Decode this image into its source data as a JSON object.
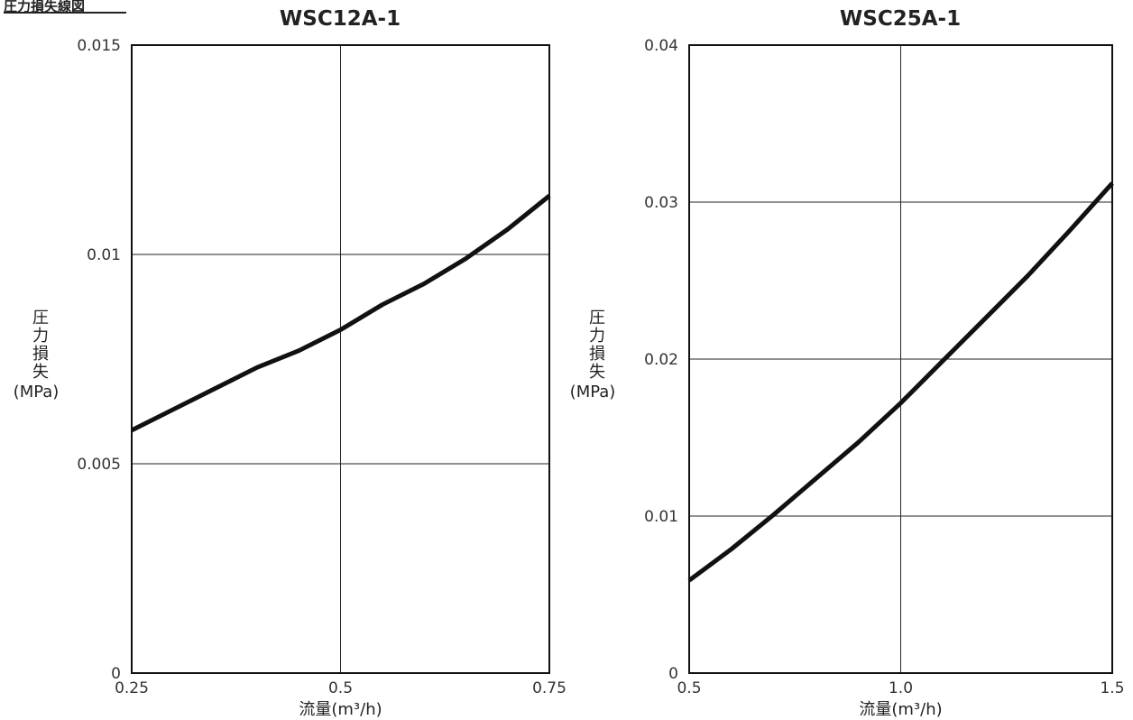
{
  "page_title": "圧力損失線図",
  "chart_data": [
    {
      "type": "line",
      "title": "WSC12A-1",
      "xlabel": "流量(m³/h)",
      "ylabel_chars": [
        "圧",
        "力",
        "損",
        "失"
      ],
      "ylabel_unit": "(MPa)",
      "xlim": [
        0.25,
        0.75
      ],
      "ylim": [
        0,
        0.015
      ],
      "x_ticks": [
        0.25,
        0.5,
        0.75
      ],
      "x_tick_labels": [
        "0.25",
        "0.5",
        "0.75"
      ],
      "y_ticks": [
        0,
        0.005,
        0.01,
        0.015
      ],
      "y_tick_labels": [
        "0",
        "0.005",
        "0.01",
        "0.015"
      ],
      "grid": true,
      "series": [
        {
          "x": [
            0.25,
            0.3,
            0.35,
            0.4,
            0.45,
            0.5,
            0.55,
            0.6,
            0.65,
            0.7,
            0.75
          ],
          "y": [
            0.0058,
            0.0063,
            0.0068,
            0.0073,
            0.0077,
            0.0082,
            0.0088,
            0.0093,
            0.0099,
            0.0106,
            0.0114
          ]
        }
      ]
    },
    {
      "type": "line",
      "title": "WSC25A-1",
      "xlabel": "流量(m³/h)",
      "ylabel_chars": [
        "圧",
        "力",
        "損",
        "失"
      ],
      "ylabel_unit": "(MPa)",
      "xlim": [
        0.5,
        1.5
      ],
      "ylim": [
        0,
        0.04
      ],
      "x_ticks": [
        0.5,
        1.0,
        1.5
      ],
      "x_tick_labels": [
        "0.5",
        "1.0",
        "1.5"
      ],
      "y_ticks": [
        0,
        0.01,
        0.02,
        0.03,
        0.04
      ],
      "y_tick_labels": [
        "0",
        "0.01",
        "0.02",
        "0.03",
        "0.04"
      ],
      "grid": true,
      "series": [
        {
          "x": [
            0.5,
            0.6,
            0.7,
            0.8,
            0.9,
            1.0,
            1.1,
            1.2,
            1.3,
            1.4,
            1.5
          ],
          "y": [
            0.0059,
            0.0079,
            0.0101,
            0.0124,
            0.0147,
            0.0172,
            0.0199,
            0.0226,
            0.0253,
            0.0282,
            0.0312
          ]
        }
      ]
    }
  ]
}
